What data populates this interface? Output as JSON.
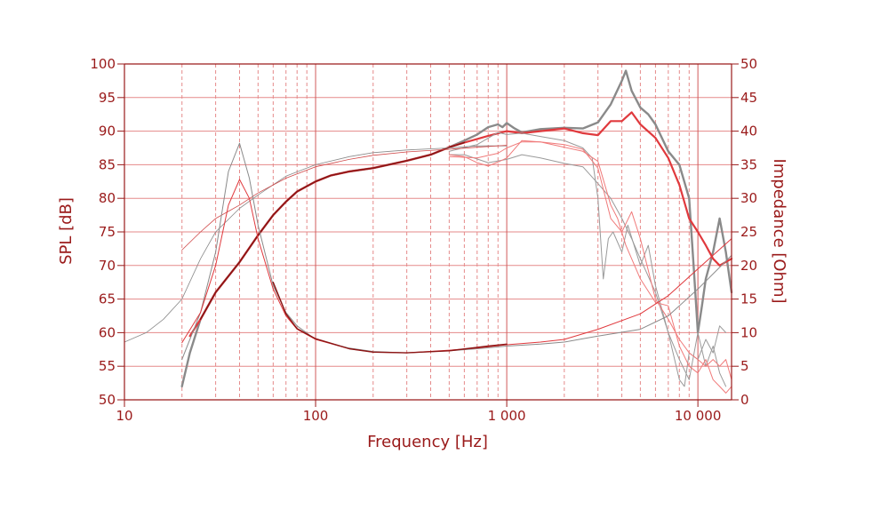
{
  "chart_data": {
    "type": "line",
    "xlabel": "Frequency [Hz]",
    "ylabel": "SPL [dB]",
    "y2label": "Impedance [Ohm]",
    "xscale": "log",
    "xlim": [
      10,
      15000
    ],
    "ylim": [
      50,
      100
    ],
    "y2lim": [
      0,
      50
    ],
    "grid": true,
    "x_ticks": [
      {
        "value": 10,
        "label": "10"
      },
      {
        "value": 100,
        "label": "100"
      },
      {
        "value": 1000,
        "label": "1 000"
      },
      {
        "value": 10000,
        "label": "10 000"
      }
    ],
    "y_ticks": [
      {
        "value": 100,
        "label": "100"
      },
      {
        "value": 95,
        "label": "95"
      },
      {
        "value": 90,
        "label": "90"
      },
      {
        "value": 85,
        "label": "85"
      },
      {
        "value": 80,
        "label": "80"
      },
      {
        "value": 75,
        "label": "75"
      },
      {
        "value": 70,
        "label": "70"
      },
      {
        "value": 65,
        "label": "65"
      },
      {
        "value": 60,
        "label": "60"
      },
      {
        "value": 55,
        "label": "55"
      },
      {
        "value": 50,
        "label": "50"
      }
    ],
    "y2_ticks": [
      {
        "value": 50,
        "label": "50"
      },
      {
        "value": 45,
        "label": "45"
      },
      {
        "value": 40,
        "label": "40"
      },
      {
        "value": 35,
        "label": "35"
      },
      {
        "value": 30,
        "label": "30"
      },
      {
        "value": 25,
        "label": "25"
      },
      {
        "value": 20,
        "label": "20"
      },
      {
        "value": 15,
        "label": "15"
      },
      {
        "value": 10,
        "label": "10"
      },
      {
        "value": 5,
        "label": "5"
      },
      {
        "value": 0,
        "label": "0"
      }
    ],
    "colors": {
      "axis": "#9a1a1a",
      "grid": "#e58a8a",
      "grid_major": "#d05a5a",
      "text": "#9a1a1a"
    },
    "series": [
      {
        "axis": "left",
        "color": "#8a8a8a",
        "width": 2.4,
        "points": [
          [
            20,
            52
          ],
          [
            22,
            57
          ],
          [
            25,
            62
          ],
          [
            30,
            66
          ],
          [
            40,
            70.5
          ],
          [
            50,
            74.5
          ],
          [
            60,
            77.5
          ],
          [
            70,
            79.5
          ],
          [
            80,
            81
          ],
          [
            100,
            82.5
          ],
          [
            120,
            83.4
          ],
          [
            150,
            84
          ],
          [
            200,
            84.5
          ],
          [
            300,
            85.6
          ],
          [
            400,
            86.5
          ],
          [
            500,
            87.6
          ],
          [
            600,
            88.6
          ],
          [
            700,
            89.5
          ],
          [
            800,
            90.6
          ],
          [
            900,
            91
          ],
          [
            950,
            90.6
          ],
          [
            1000,
            91.2
          ],
          [
            1100,
            90.4
          ],
          [
            1200,
            89.8
          ],
          [
            1500,
            90.3
          ],
          [
            2000,
            90.5
          ],
          [
            2500,
            90.4
          ],
          [
            3000,
            91.3
          ],
          [
            3500,
            94
          ],
          [
            4000,
            97.5
          ],
          [
            4200,
            99
          ],
          [
            4500,
            96
          ],
          [
            5000,
            93.5
          ],
          [
            5500,
            92.5
          ],
          [
            6000,
            91
          ],
          [
            7000,
            87
          ],
          [
            8000,
            85
          ],
          [
            9000,
            80
          ],
          [
            9500,
            70
          ],
          [
            10000,
            60
          ],
          [
            10500,
            64
          ],
          [
            11000,
            68
          ],
          [
            12000,
            72
          ],
          [
            13000,
            77
          ],
          [
            14000,
            72
          ],
          [
            15000,
            66
          ]
        ]
      },
      {
        "axis": "left",
        "color": "#e0393d",
        "width": 2.2,
        "points": [
          [
            22,
            59.5
          ],
          [
            25,
            62
          ],
          [
            30,
            66
          ],
          [
            40,
            70.5
          ],
          [
            50,
            74.5
          ],
          [
            60,
            77.5
          ],
          [
            70,
            79.5
          ],
          [
            80,
            81
          ],
          [
            100,
            82.5
          ],
          [
            120,
            83.4
          ],
          [
            150,
            84
          ],
          [
            200,
            84.5
          ],
          [
            300,
            85.6
          ],
          [
            400,
            86.5
          ],
          [
            500,
            87.6
          ],
          [
            600,
            88.3
          ],
          [
            800,
            89.3
          ],
          [
            1000,
            90
          ],
          [
            1200,
            89.7
          ],
          [
            1500,
            90
          ],
          [
            2000,
            90.4
          ],
          [
            2500,
            89.7
          ],
          [
            3000,
            89.4
          ],
          [
            3500,
            91.5
          ],
          [
            4000,
            91.5
          ],
          [
            4500,
            92.8
          ],
          [
            5000,
            91
          ],
          [
            6000,
            89
          ],
          [
            7000,
            86
          ],
          [
            8000,
            82
          ],
          [
            9000,
            77
          ],
          [
            10000,
            75
          ],
          [
            11000,
            73
          ],
          [
            12000,
            71
          ],
          [
            13000,
            70
          ],
          [
            15000,
            71
          ]
        ]
      },
      {
        "axis": "left",
        "color": "#8b1414",
        "width": 1.6,
        "points": [
          [
            25,
            62
          ],
          [
            30,
            66
          ],
          [
            40,
            70.5
          ],
          [
            50,
            74.5
          ],
          [
            60,
            77.5
          ],
          [
            70,
            79.5
          ],
          [
            80,
            81
          ],
          [
            100,
            82.5
          ],
          [
            120,
            83.4
          ],
          [
            150,
            84
          ],
          [
            200,
            84.5
          ],
          [
            300,
            85.6
          ],
          [
            400,
            86.5
          ],
          [
            500,
            87.6
          ],
          [
            600,
            88.3
          ]
        ]
      },
      {
        "axis": "left",
        "color": "#9a9a9a",
        "width": 1,
        "points": [
          [
            500,
            87
          ],
          [
            700,
            88
          ],
          [
            900,
            89.8
          ],
          [
            1000,
            89.5
          ],
          [
            1200,
            89.7
          ],
          [
            1500,
            89.2
          ],
          [
            2000,
            88.6
          ],
          [
            2500,
            87.5
          ],
          [
            2800,
            86
          ],
          [
            3000,
            80
          ],
          [
            3200,
            68
          ],
          [
            3400,
            74
          ],
          [
            3600,
            75
          ],
          [
            4000,
            72
          ],
          [
            4300,
            76
          ],
          [
            5000,
            70
          ],
          [
            5500,
            73
          ],
          [
            6000,
            67
          ],
          [
            7000,
            60
          ],
          [
            8000,
            56
          ],
          [
            9000,
            53
          ],
          [
            10000,
            60
          ],
          [
            11000,
            55
          ],
          [
            12000,
            58
          ],
          [
            13000,
            54
          ],
          [
            14000,
            52
          ]
        ]
      },
      {
        "axis": "left",
        "color": "#9a9a9a",
        "width": 1,
        "points": [
          [
            500,
            86.5
          ],
          [
            600,
            86.5
          ],
          [
            800,
            85.3
          ],
          [
            1000,
            85.8
          ],
          [
            1200,
            86.5
          ],
          [
            1500,
            86
          ],
          [
            2000,
            85.2
          ],
          [
            2500,
            84.7
          ],
          [
            3000,
            82.2
          ],
          [
            3500,
            80
          ],
          [
            4000,
            77
          ],
          [
            4500,
            74
          ],
          [
            5000,
            71
          ],
          [
            6000,
            66
          ],
          [
            7000,
            60
          ],
          [
            8000,
            53
          ],
          [
            8500,
            52
          ],
          [
            9000,
            57
          ],
          [
            10000,
            56
          ],
          [
            11000,
            59
          ],
          [
            12000,
            57
          ],
          [
            13000,
            61
          ],
          [
            14000,
            60
          ]
        ]
      },
      {
        "axis": "left",
        "color": "#f07a7a",
        "width": 1,
        "points": [
          [
            500,
            86.5
          ],
          [
            600,
            86.2
          ],
          [
            700,
            85.3
          ],
          [
            800,
            84.8
          ],
          [
            900,
            85.4
          ],
          [
            1000,
            86
          ],
          [
            1200,
            88.6
          ],
          [
            1500,
            88.4
          ],
          [
            2000,
            87.6
          ],
          [
            2500,
            87
          ],
          [
            3000,
            85.5
          ],
          [
            3500,
            79
          ],
          [
            3800,
            77
          ],
          [
            4200,
            73
          ],
          [
            4500,
            71
          ],
          [
            5000,
            68
          ],
          [
            6000,
            64.5
          ],
          [
            7000,
            64
          ],
          [
            8000,
            58
          ],
          [
            9000,
            55
          ],
          [
            10000,
            54
          ],
          [
            11000,
            56
          ],
          [
            12000,
            53
          ],
          [
            13000,
            52
          ],
          [
            14000,
            51
          ],
          [
            15000,
            52
          ]
        ]
      },
      {
        "axis": "left",
        "color": "#f07a7a",
        "width": 1,
        "points": [
          [
            500,
            86.2
          ],
          [
            700,
            86
          ],
          [
            900,
            86.7
          ],
          [
            1000,
            87.5
          ],
          [
            1200,
            88.4
          ],
          [
            1500,
            88.4
          ],
          [
            2000,
            88
          ],
          [
            2500,
            87.3
          ],
          [
            3000,
            84.5
          ],
          [
            3500,
            77
          ],
          [
            4000,
            75
          ],
          [
            4500,
            78
          ],
          [
            5000,
            74
          ],
          [
            6000,
            65
          ],
          [
            7000,
            62
          ],
          [
            8000,
            59
          ],
          [
            9000,
            57
          ],
          [
            10000,
            56
          ],
          [
            11000,
            55
          ],
          [
            12000,
            56
          ],
          [
            13000,
            55
          ],
          [
            14000,
            56
          ],
          [
            15000,
            53
          ]
        ]
      },
      {
        "axis": "left",
        "color": "#8a8a8a",
        "width": 0.8,
        "points": [
          [
            10,
            58.6
          ],
          [
            13,
            60
          ],
          [
            16,
            62
          ],
          [
            20,
            65
          ],
          [
            25,
            71
          ],
          [
            30,
            75
          ],
          [
            40,
            78.5
          ],
          [
            50,
            80.5
          ],
          [
            70,
            83.3
          ],
          [
            100,
            85
          ],
          [
            150,
            86.2
          ],
          [
            200,
            86.8
          ],
          [
            300,
            87.2
          ],
          [
            500,
            87.5
          ],
          [
            700,
            87.8
          ],
          [
            1000,
            87.8
          ]
        ]
      },
      {
        "axis": "left",
        "color": "#d04848",
        "width": 0.8,
        "points": [
          [
            20,
            72.3
          ],
          [
            25,
            75
          ],
          [
            30,
            77
          ],
          [
            40,
            79
          ],
          [
            50,
            80.8
          ],
          [
            70,
            83
          ],
          [
            100,
            84.7
          ],
          [
            150,
            85.8
          ],
          [
            200,
            86.4
          ],
          [
            300,
            86.9
          ],
          [
            500,
            87.3
          ],
          [
            700,
            87.6
          ],
          [
            1000,
            87.9
          ]
        ]
      },
      {
        "axis": "right",
        "color": "#8a8a8a",
        "width": 1,
        "points": [
          [
            20,
            6
          ],
          [
            25,
            13
          ],
          [
            30,
            22
          ],
          [
            35,
            34
          ],
          [
            40,
            38.2
          ],
          [
            45,
            33
          ],
          [
            50,
            26
          ],
          [
            60,
            17
          ],
          [
            70,
            13
          ],
          [
            80,
            11
          ],
          [
            100,
            9
          ],
          [
            150,
            7.7
          ],
          [
            200,
            7.2
          ],
          [
            300,
            7
          ],
          [
            500,
            7.3
          ],
          [
            700,
            7.6
          ],
          [
            1000,
            8
          ],
          [
            1500,
            8.3
          ],
          [
            2000,
            8.6
          ],
          [
            3000,
            9.5
          ],
          [
            5000,
            10.5
          ],
          [
            7000,
            12.5
          ],
          [
            10000,
            16.5
          ],
          [
            15000,
            21.5
          ]
        ]
      },
      {
        "axis": "right",
        "color": "#e0393d",
        "width": 1,
        "points": [
          [
            20,
            8.5
          ],
          [
            25,
            13
          ],
          [
            30,
            20
          ],
          [
            35,
            29
          ],
          [
            40,
            32.8
          ],
          [
            45,
            30
          ],
          [
            50,
            24
          ],
          [
            60,
            16.5
          ],
          [
            70,
            12.5
          ],
          [
            80,
            10.5
          ],
          [
            100,
            9
          ],
          [
            150,
            7.6
          ],
          [
            200,
            7.1
          ],
          [
            300,
            7
          ],
          [
            500,
            7.4
          ],
          [
            700,
            7.7
          ],
          [
            1000,
            8.2
          ],
          [
            1500,
            8.6
          ],
          [
            2000,
            9
          ],
          [
            3000,
            10.5
          ],
          [
            5000,
            12.8
          ],
          [
            7000,
            15.5
          ],
          [
            10000,
            19.5
          ],
          [
            15000,
            24
          ]
        ]
      },
      {
        "axis": "right",
        "color": "#8b1414",
        "width": 1.4,
        "points": [
          [
            60,
            17.5
          ],
          [
            70,
            12.8
          ],
          [
            80,
            10.6
          ],
          [
            100,
            9.1
          ],
          [
            150,
            7.6
          ],
          [
            200,
            7.1
          ],
          [
            300,
            7
          ],
          [
            500,
            7.3
          ],
          [
            800,
            8
          ],
          [
            1000,
            8.3
          ]
        ]
      }
    ]
  }
}
